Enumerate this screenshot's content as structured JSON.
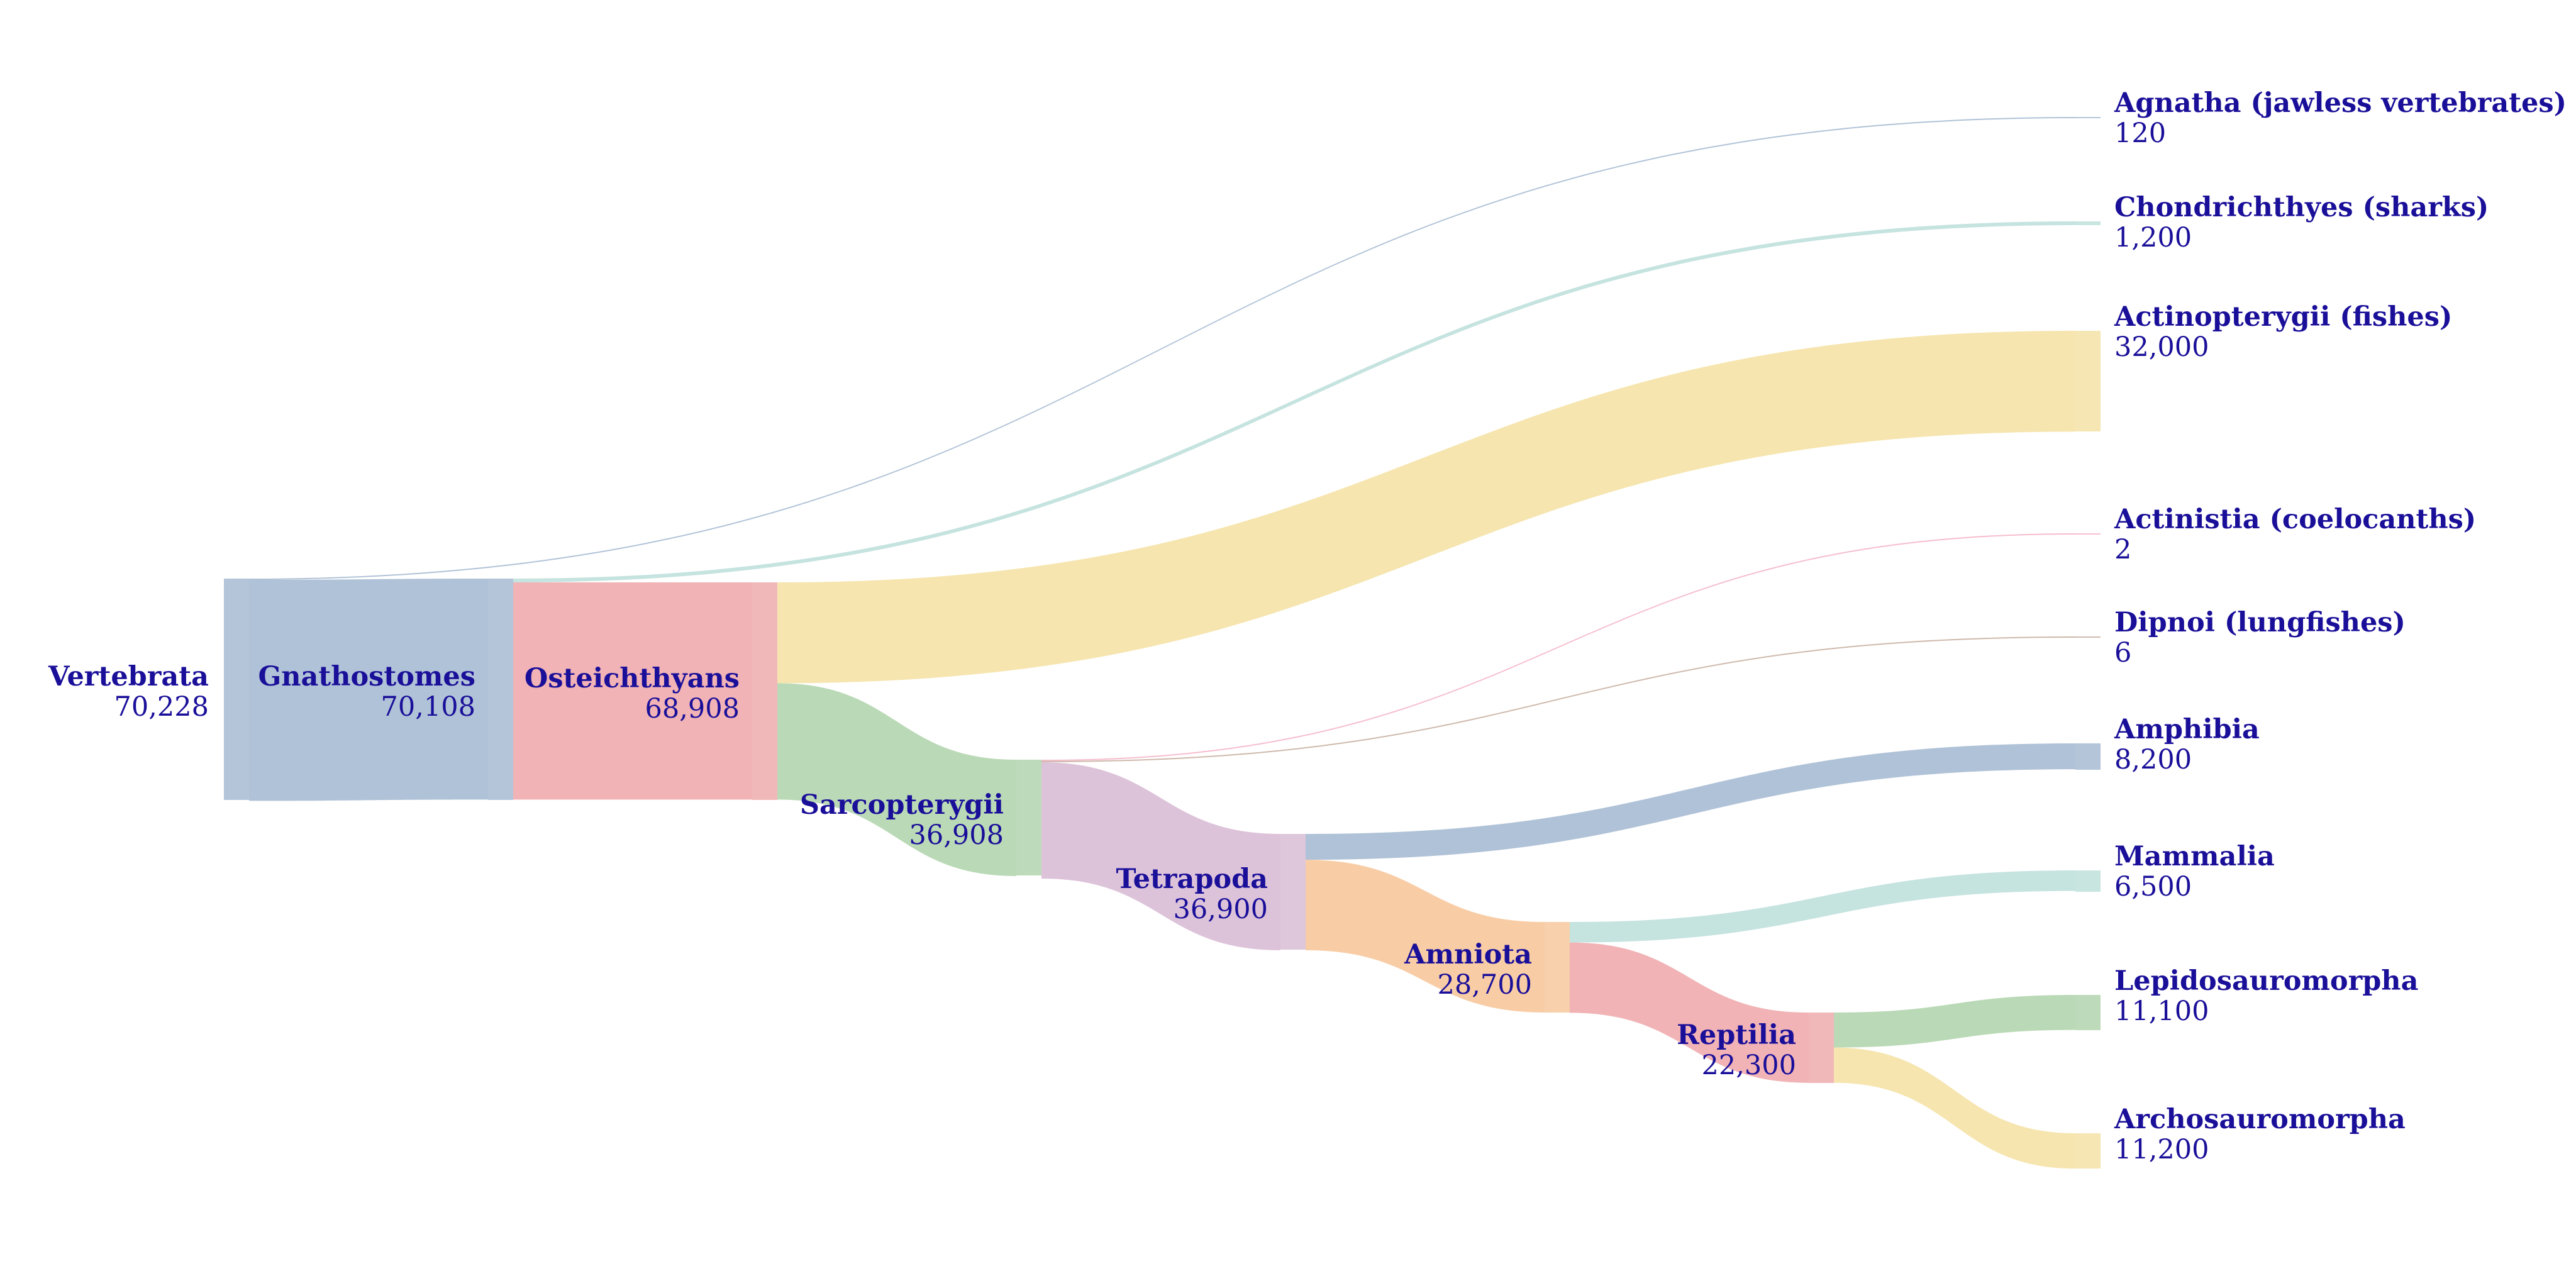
{
  "colors": {
    "label": "#1a0f99",
    "blue": "#a7bbd3",
    "red": "#efabae",
    "green": "#b2d5ae",
    "purple": "#d9bdd5",
    "orange": "#f7c89c",
    "yellow": "#f5e2a6",
    "teal": "#bfe0db",
    "pink": "#f5b6c8",
    "tan": "#c9b1a3",
    "grey": "#d9d2cc"
  },
  "nodes": [
    {
      "id": "vertebrata",
      "name": "Vertebrata",
      "value": "70,228",
      "color": "blue"
    },
    {
      "id": "gnathostomes",
      "name": "Gnathostomes",
      "value": "70,108",
      "color": "blue"
    },
    {
      "id": "osteichthyans",
      "name": "Osteichthyans",
      "value": "68,908",
      "color": "red"
    },
    {
      "id": "sarcopterygii",
      "name": "Sarcopterygii",
      "value": "36,908",
      "color": "green"
    },
    {
      "id": "tetrapoda",
      "name": "Tetrapoda",
      "value": "36,900",
      "color": "purple"
    },
    {
      "id": "amniota",
      "name": "Amniota",
      "value": "28,700",
      "color": "orange"
    },
    {
      "id": "reptilia",
      "name": "Reptilia",
      "value": "22,300",
      "color": "red"
    },
    {
      "id": "agnatha",
      "name": "Agnatha (jawless vertebrates)",
      "value": "120",
      "color": "blue"
    },
    {
      "id": "chondrichthyes",
      "name": "Chondrichthyes (sharks)",
      "value": "1,200",
      "color": "teal"
    },
    {
      "id": "actinopterygii",
      "name": "Actinopterygii (fishes)",
      "value": "32,000",
      "color": "yellow"
    },
    {
      "id": "actinistia",
      "name": "Actinistia (coelocanths)",
      "value": "2",
      "color": "pink"
    },
    {
      "id": "dipnoi",
      "name": "Dipnoi (lungfishes)",
      "value": "6",
      "color": "tan"
    },
    {
      "id": "amphibia",
      "name": "Amphibia",
      "value": "8,200",
      "color": "blue"
    },
    {
      "id": "mammalia",
      "name": "Mammalia",
      "value": "6,500",
      "color": "teal"
    },
    {
      "id": "lepidosauromorpha",
      "name": "Lepidosauromorpha",
      "value": "11,100",
      "color": "green"
    },
    {
      "id": "archosauromorpha",
      "name": "Archosauromorpha",
      "value": "11,200",
      "color": "yellow"
    }
  ],
  "links": [
    {
      "source": "vertebrata",
      "target": "agnatha",
      "value": 120,
      "color": "blue"
    },
    {
      "source": "vertebrata",
      "target": "gnathostomes",
      "value": 70108,
      "color": "blue"
    },
    {
      "source": "gnathostomes",
      "target": "chondrichthyes",
      "value": 1200,
      "color": "teal"
    },
    {
      "source": "gnathostomes",
      "target": "osteichthyans",
      "value": 68908,
      "color": "red"
    },
    {
      "source": "osteichthyans",
      "target": "actinopterygii",
      "value": 32000,
      "color": "yellow"
    },
    {
      "source": "osteichthyans",
      "target": "sarcopterygii",
      "value": 36908,
      "color": "green"
    },
    {
      "source": "sarcopterygii",
      "target": "actinistia",
      "value": 2,
      "color": "pink"
    },
    {
      "source": "sarcopterygii",
      "target": "dipnoi",
      "value": 6,
      "color": "tan"
    },
    {
      "source": "sarcopterygii",
      "target": "tetrapoda",
      "value": 36900,
      "color": "purple"
    },
    {
      "source": "tetrapoda",
      "target": "amphibia",
      "value": 8200,
      "color": "blue"
    },
    {
      "source": "tetrapoda",
      "target": "amniota",
      "value": 28700,
      "color": "orange"
    },
    {
      "source": "amniota",
      "target": "mammalia",
      "value": 6500,
      "color": "teal"
    },
    {
      "source": "amniota",
      "target": "reptilia",
      "value": 22300,
      "color": "red"
    },
    {
      "source": "reptilia",
      "target": "lepidosauromorpha",
      "value": 11100,
      "color": "green"
    },
    {
      "source": "reptilia",
      "target": "archosauromorpha",
      "value": 11200,
      "color": "yellow"
    }
  ]
}
